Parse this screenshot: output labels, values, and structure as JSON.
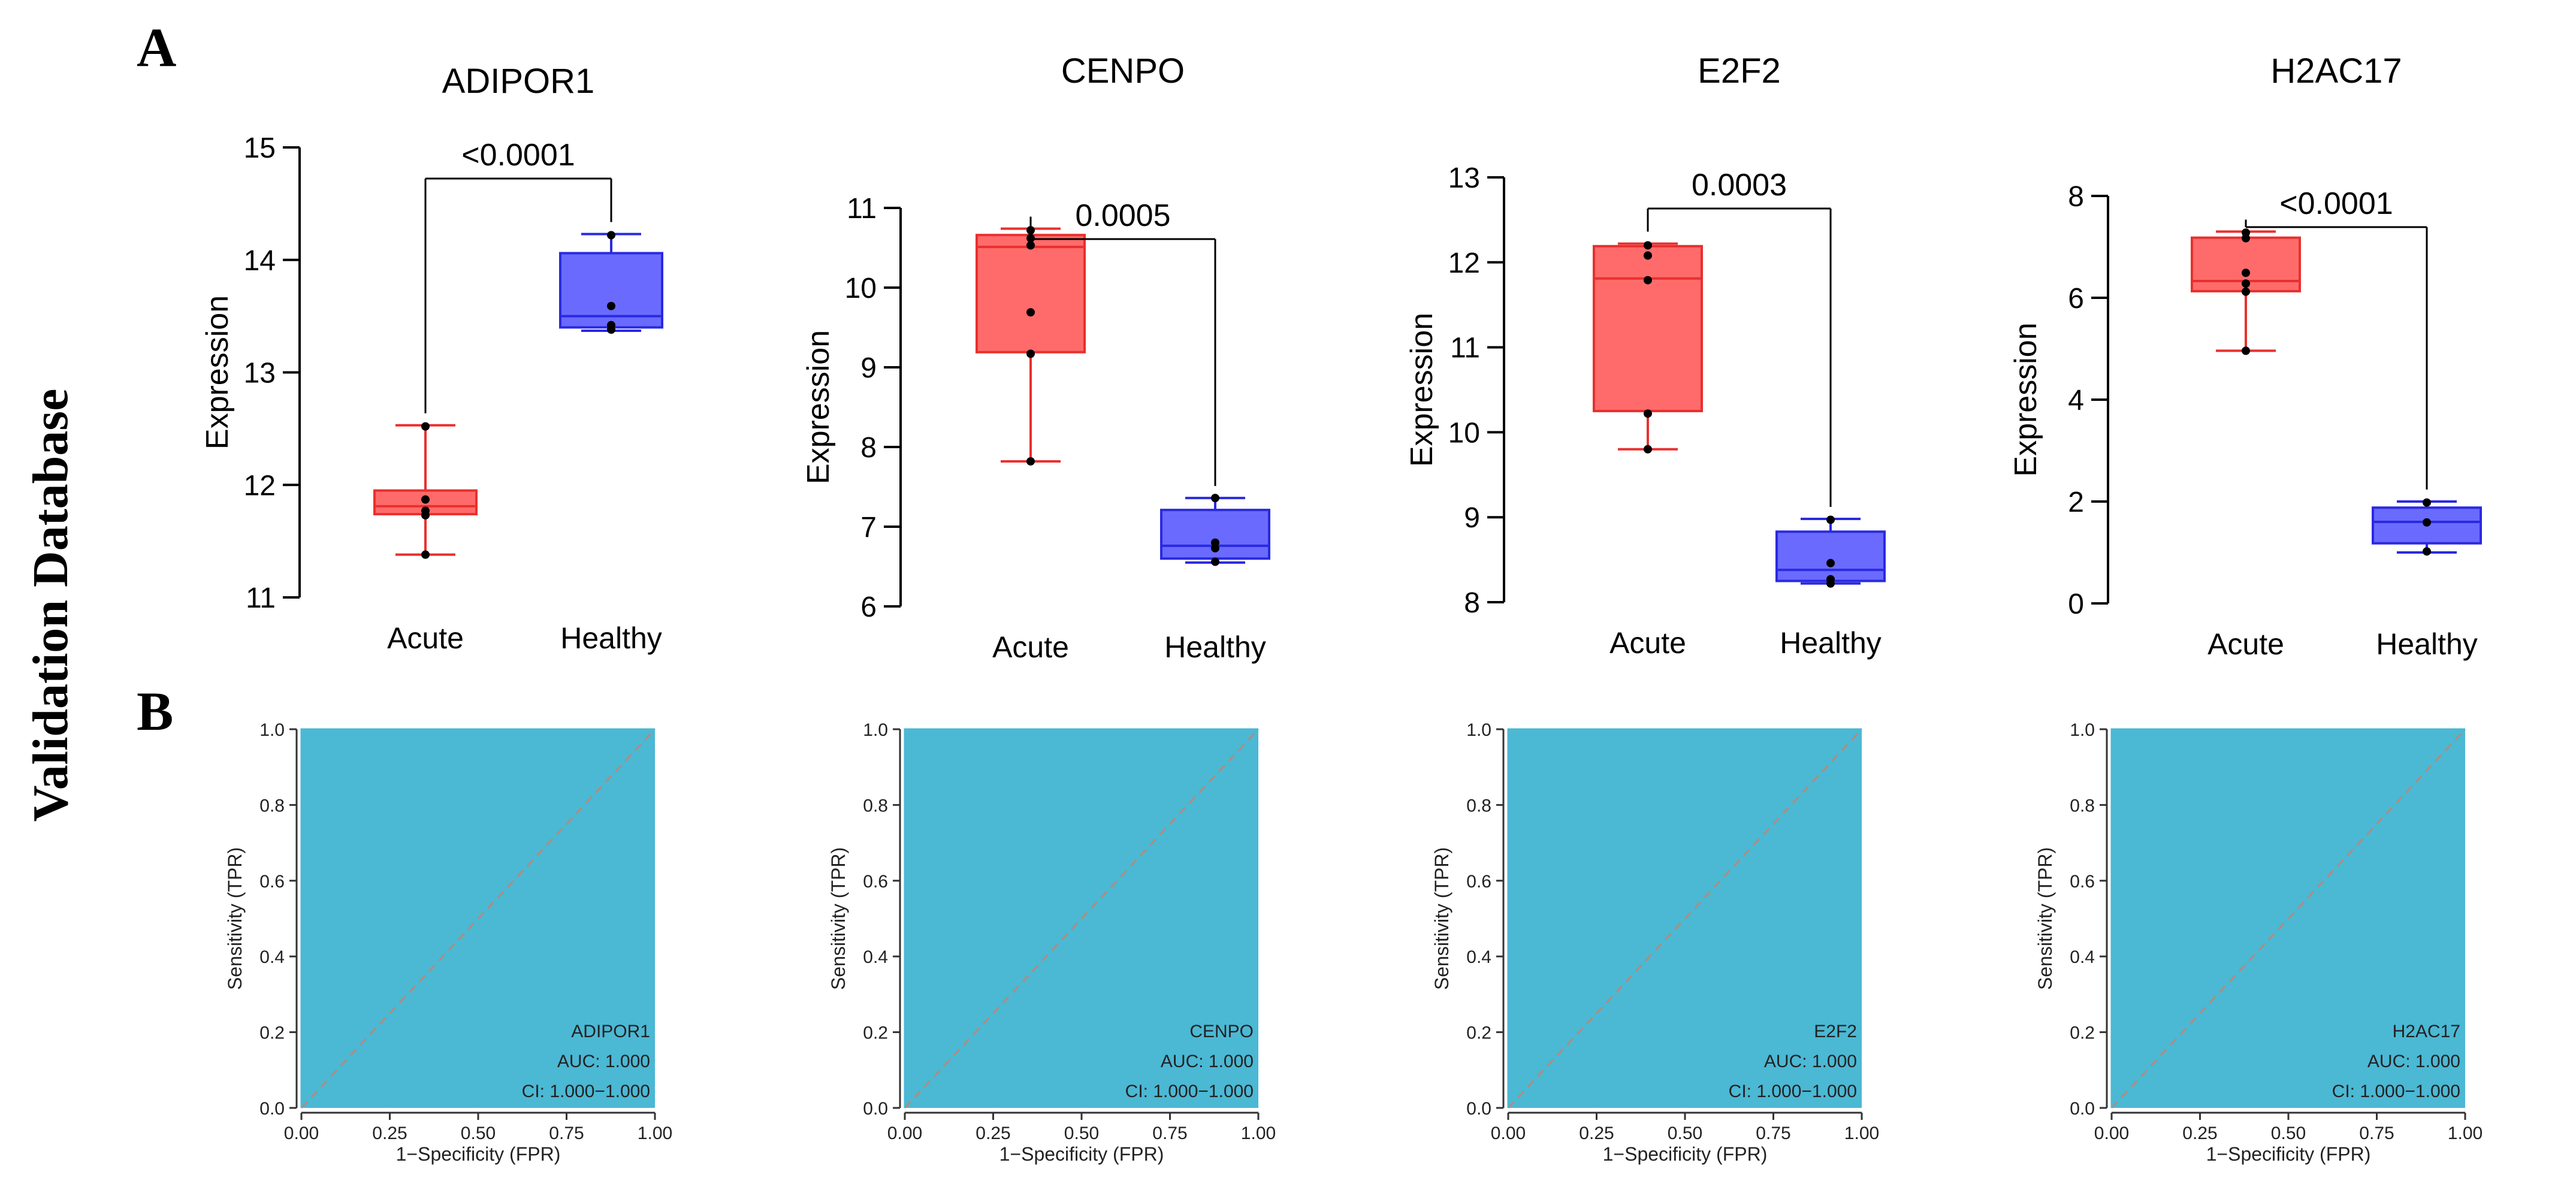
{
  "figure": {
    "side_label": "Validation Database",
    "panel_a_label": "A",
    "panel_b_label": "B",
    "colors": {
      "acute_fill": "#FF6B6B",
      "acute_stroke": "#E8302E",
      "healthy_fill": "#6A6AFF",
      "healthy_stroke": "#2A2AE0",
      "roc_fill": "#4BB8D4",
      "roc_diagonal": "#B58A7A",
      "axis": "#000000"
    }
  },
  "chart_data": [
    {
      "type": "box",
      "panel": "A",
      "title": "ADIPOR1",
      "ylabel": "Expression",
      "ylim": [
        11,
        15
      ],
      "yticks": [
        "11",
        "12",
        "13",
        "14",
        "15"
      ],
      "categories": [
        "Acute",
        "Healthy"
      ],
      "p_value": "<0.0001",
      "boxes": [
        {
          "group": "Acute",
          "min": 11.38,
          "q1": 11.74,
          "median": 11.81,
          "q3": 11.95,
          "max": 12.53,
          "points": [
            11.38,
            11.73,
            11.77,
            11.87,
            12.52
          ]
        },
        {
          "group": "Healthy",
          "min": 13.37,
          "q1": 13.4,
          "median": 13.5,
          "q3": 14.06,
          "max": 14.23,
          "points": [
            13.38,
            13.42,
            13.59,
            14.22
          ]
        }
      ]
    },
    {
      "type": "box",
      "panel": "A",
      "title": "CENPO",
      "ylabel": "Expression",
      "ylim": [
        6,
        11
      ],
      "yticks": [
        "6",
        "7",
        "8",
        "9",
        "10",
        "11"
      ],
      "categories": [
        "Acute",
        "Healthy"
      ],
      "p_value": "0.0005",
      "boxes": [
        {
          "group": "Acute",
          "min": 7.82,
          "q1": 9.19,
          "median": 10.51,
          "q3": 10.66,
          "max": 10.74,
          "points": [
            7.82,
            9.17,
            9.69,
            10.53,
            10.62,
            10.72
          ]
        },
        {
          "group": "Healthy",
          "min": 6.55,
          "q1": 6.6,
          "median": 6.76,
          "q3": 7.21,
          "max": 7.36,
          "points": [
            6.56,
            6.73,
            6.8,
            7.36
          ]
        }
      ]
    },
    {
      "type": "box",
      "panel": "A",
      "title": "E2F2",
      "ylabel": "Expression",
      "ylim": [
        8,
        13
      ],
      "yticks": [
        "8",
        "9",
        "10",
        "11",
        "12",
        "13"
      ],
      "categories": [
        "Acute",
        "Healthy"
      ],
      "p_value": "0.0003",
      "boxes": [
        {
          "group": "Acute",
          "min": 9.8,
          "q1": 10.25,
          "median": 11.81,
          "q3": 12.19,
          "max": 12.22,
          "points": [
            9.8,
            10.22,
            11.79,
            12.08,
            12.2
          ]
        },
        {
          "group": "Healthy",
          "min": 8.22,
          "q1": 8.25,
          "median": 8.38,
          "q3": 8.83,
          "max": 8.98,
          "points": [
            8.22,
            8.27,
            8.46,
            8.97
          ]
        }
      ]
    },
    {
      "type": "box",
      "panel": "A",
      "title": "H2AC17",
      "ylabel": "Expression",
      "ylim": [
        0,
        8
      ],
      "yticks": [
        "0",
        "2",
        "4",
        "6",
        "8"
      ],
      "categories": [
        "Acute",
        "Healthy"
      ],
      "p_value": "<0.0001",
      "boxes": [
        {
          "group": "Acute",
          "min": 4.96,
          "q1": 6.13,
          "median": 6.33,
          "q3": 7.18,
          "max": 7.3,
          "points": [
            4.96,
            6.12,
            6.28,
            6.49,
            7.17,
            7.28
          ]
        },
        {
          "group": "Healthy",
          "min": 1.0,
          "q1": 1.18,
          "median": 1.6,
          "q3": 1.88,
          "max": 2.0,
          "points": [
            1.02,
            1.59,
            1.98
          ]
        }
      ]
    },
    {
      "type": "roc",
      "panel": "B",
      "gene": "ADIPOR1",
      "auc_text": "AUC: 1.000",
      "ci_text": "CI: 1.000−1.000",
      "xlabel": "1−Specificity (FPR)",
      "ylabel": "Sensitivity (TPR)",
      "xlim": [
        0,
        1
      ],
      "ylim": [
        0,
        1
      ],
      "xticks": [
        "0.00",
        "0.25",
        "0.50",
        "0.75",
        "1.00"
      ],
      "yticks": [
        "0.0",
        "0.2",
        "0.4",
        "0.6",
        "0.8",
        "1.0"
      ],
      "auc": 1.0
    },
    {
      "type": "roc",
      "panel": "B",
      "gene": "CENPO",
      "auc_text": "AUC: 1.000",
      "ci_text": "CI: 1.000−1.000",
      "xlabel": "1−Specificity (FPR)",
      "ylabel": "Sensitivity (TPR)",
      "xlim": [
        0,
        1
      ],
      "ylim": [
        0,
        1
      ],
      "xticks": [
        "0.00",
        "0.25",
        "0.50",
        "0.75",
        "1.00"
      ],
      "yticks": [
        "0.0",
        "0.2",
        "0.4",
        "0.6",
        "0.8",
        "1.0"
      ],
      "auc": 1.0
    },
    {
      "type": "roc",
      "panel": "B",
      "gene": "E2F2",
      "auc_text": "AUC: 1.000",
      "ci_text": "CI: 1.000−1.000",
      "xlabel": "1−Specificity (FPR)",
      "ylabel": "Sensitivity (TPR)",
      "xlim": [
        0,
        1
      ],
      "ylim": [
        0,
        1
      ],
      "xticks": [
        "0.00",
        "0.25",
        "0.50",
        "0.75",
        "1.00"
      ],
      "yticks": [
        "0.0",
        "0.2",
        "0.4",
        "0.6",
        "0.8",
        "1.0"
      ],
      "auc": 1.0
    },
    {
      "type": "roc",
      "panel": "B",
      "gene": "H2AC17",
      "auc_text": "AUC: 1.000",
      "ci_text": "CI: 1.000−1.000",
      "xlabel": "1−Specificity (FPR)",
      "ylabel": "Sensitivity (TPR)",
      "xlim": [
        0,
        1
      ],
      "ylim": [
        0,
        1
      ],
      "xticks": [
        "0.00",
        "0.25",
        "0.50",
        "0.75",
        "1.00"
      ],
      "yticks": [
        "0.0",
        "0.2",
        "0.4",
        "0.6",
        "0.8",
        "1.0"
      ],
      "auc": 1.0
    }
  ]
}
